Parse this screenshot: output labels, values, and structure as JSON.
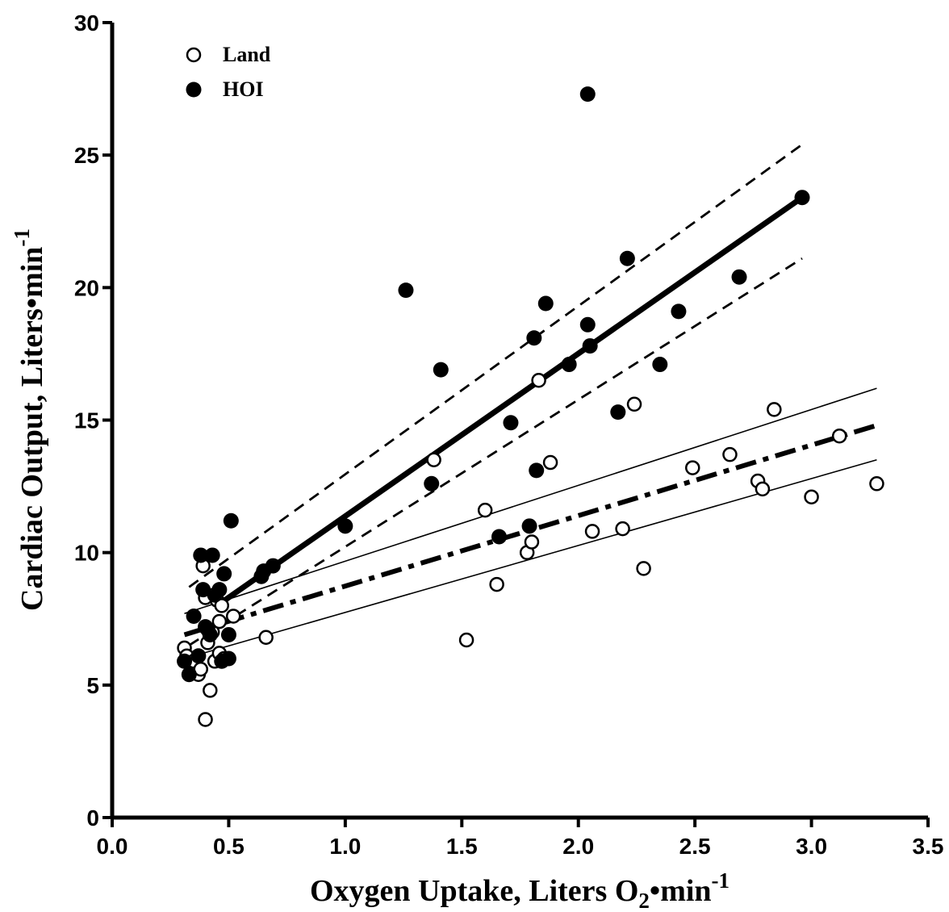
{
  "chart_data": {
    "type": "scatter",
    "xlabel": {
      "pre": "Oxygen Uptake, Liters O",
      "sub": "2",
      "mid": "•min",
      "sup": "-1"
    },
    "ylabel": {
      "pre": "Cardiac Output, Liters•min",
      "sup": "-1"
    },
    "xlim": [
      0,
      3.5
    ],
    "ylim": [
      0,
      30
    ],
    "xticks": [
      "0.0",
      "0.5",
      "1.0",
      "1.5",
      "2.0",
      "2.5",
      "3.0",
      "3.5"
    ],
    "yticks": [
      "0",
      "5",
      "10",
      "15",
      "20",
      "25",
      "30"
    ],
    "grid": false,
    "legend_position": "top-left",
    "series": [
      {
        "name": "Land",
        "marker": "open-circle",
        "points": [
          [
            0.31,
            6.4
          ],
          [
            0.32,
            6.1
          ],
          [
            0.35,
            5.9
          ],
          [
            0.37,
            5.4
          ],
          [
            0.38,
            5.6
          ],
          [
            0.39,
            9.5
          ],
          [
            0.4,
            3.7
          ],
          [
            0.4,
            8.3
          ],
          [
            0.41,
            6.6
          ],
          [
            0.42,
            4.8
          ],
          [
            0.43,
            7.0
          ],
          [
            0.44,
            5.9
          ],
          [
            0.45,
            8.2
          ],
          [
            0.46,
            6.2
          ],
          [
            0.46,
            7.4
          ],
          [
            0.47,
            8.0
          ],
          [
            0.48,
            6.0
          ],
          [
            0.52,
            7.6
          ],
          [
            0.66,
            6.8
          ],
          [
            1.38,
            13.5
          ],
          [
            1.52,
            6.7
          ],
          [
            1.6,
            11.6
          ],
          [
            1.65,
            8.8
          ],
          [
            1.78,
            10.0
          ],
          [
            1.8,
            10.4
          ],
          [
            1.83,
            16.5
          ],
          [
            1.88,
            13.4
          ],
          [
            2.06,
            10.8
          ],
          [
            2.19,
            10.9
          ],
          [
            2.24,
            15.6
          ],
          [
            2.28,
            9.4
          ],
          [
            2.49,
            13.2
          ],
          [
            2.65,
            13.7
          ],
          [
            2.77,
            12.7
          ],
          [
            2.79,
            12.4
          ],
          [
            2.84,
            15.4
          ],
          [
            3.0,
            12.1
          ],
          [
            3.12,
            14.4
          ],
          [
            3.28,
            12.6
          ]
        ]
      },
      {
        "name": "HOI",
        "marker": "filled-circle",
        "points": [
          [
            0.31,
            5.9
          ],
          [
            0.33,
            5.4
          ],
          [
            0.35,
            7.6
          ],
          [
            0.37,
            6.1
          ],
          [
            0.38,
            9.9
          ],
          [
            0.39,
            8.6
          ],
          [
            0.4,
            7.2
          ],
          [
            0.41,
            7.1
          ],
          [
            0.42,
            6.9
          ],
          [
            0.43,
            9.9
          ],
          [
            0.44,
            8.4
          ],
          [
            0.46,
            8.6
          ],
          [
            0.47,
            5.9
          ],
          [
            0.48,
            9.2
          ],
          [
            0.5,
            6.0
          ],
          [
            0.5,
            6.9
          ],
          [
            0.51,
            11.2
          ],
          [
            0.64,
            9.1
          ],
          [
            0.65,
            9.3
          ],
          [
            0.69,
            9.5
          ],
          [
            1.0,
            11.0
          ],
          [
            1.26,
            19.9
          ],
          [
            1.37,
            12.6
          ],
          [
            1.41,
            16.9
          ],
          [
            1.66,
            10.6
          ],
          [
            1.71,
            14.9
          ],
          [
            1.79,
            11.0
          ],
          [
            1.81,
            18.1
          ],
          [
            1.82,
            13.1
          ],
          [
            1.86,
            19.4
          ],
          [
            1.96,
            17.1
          ],
          [
            2.04,
            27.3
          ],
          [
            2.04,
            18.6
          ],
          [
            2.05,
            17.8
          ],
          [
            2.17,
            15.3
          ],
          [
            2.21,
            21.1
          ],
          [
            2.35,
            17.1
          ],
          [
            2.43,
            19.1
          ],
          [
            2.69,
            20.4
          ],
          [
            2.96,
            23.4
          ]
        ]
      }
    ],
    "fits": [
      {
        "for": "HOI",
        "style": "thick-solid",
        "x": [
          0.45,
          2.96
        ],
        "y": [
          8.0,
          23.4
        ]
      },
      {
        "for": "HOI",
        "style": "dashed",
        "x": [
          0.33,
          2.96
        ],
        "y": [
          8.7,
          25.4
        ]
      },
      {
        "for": "HOI",
        "style": "dashed",
        "x": [
          0.33,
          2.96
        ],
        "y": [
          6.5,
          21.1
        ]
      },
      {
        "for": "Land",
        "style": "thick-dash-dot",
        "x": [
          0.31,
          3.28
        ],
        "y": [
          6.9,
          14.8
        ]
      },
      {
        "for": "Land",
        "style": "thin",
        "x": [
          0.31,
          3.28
        ],
        "y": [
          7.7,
          16.2
        ]
      },
      {
        "for": "Land",
        "style": "thin",
        "x": [
          0.31,
          3.28
        ],
        "y": [
          6.0,
          13.5
        ]
      }
    ]
  }
}
